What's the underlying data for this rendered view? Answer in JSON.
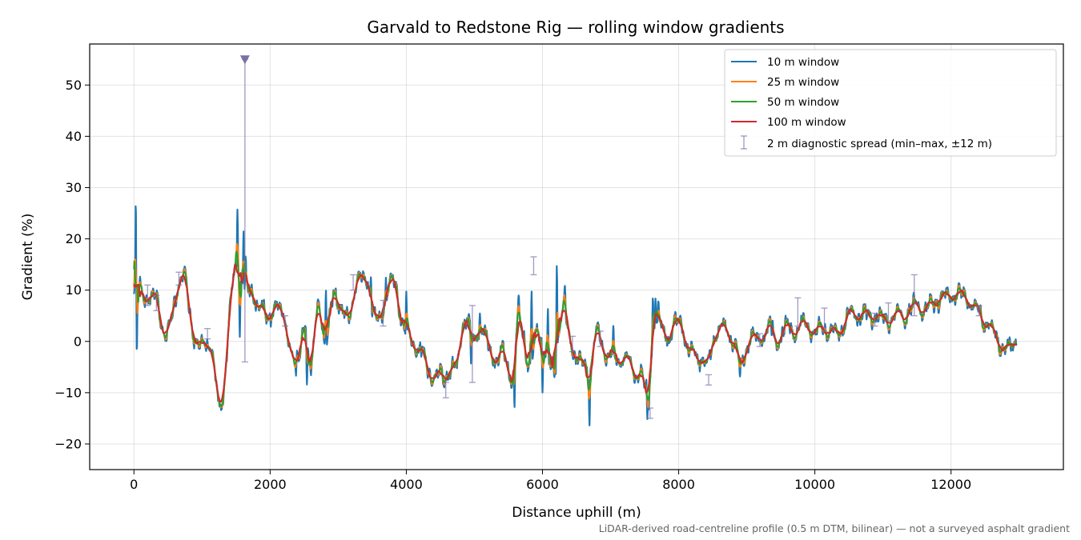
{
  "chart_data": {
    "type": "line",
    "title": "Garvald to Redstone Rig — rolling window gradients",
    "xlabel": "Distance uphill (m)",
    "ylabel": "Gradient (%)",
    "xlim": [
      -650,
      13650
    ],
    "ylim": [
      -25,
      58
    ],
    "xticks": [
      0,
      2000,
      4000,
      6000,
      8000,
      10000,
      12000
    ],
    "yticks": [
      -20,
      -10,
      0,
      10,
      20,
      30,
      40,
      50
    ],
    "grid": true,
    "legend_position": "top-right",
    "footnote": "LiDAR-derived road-centreline profile (0.5 m DTM, bilinear) — not a surveyed asphalt gradient",
    "profile_control_points": [
      [
        0,
        9
      ],
      [
        60,
        11
      ],
      [
        150,
        9
      ],
      [
        250,
        8
      ],
      [
        330,
        9.5
      ],
      [
        400,
        4
      ],
      [
        470,
        0
      ],
      [
        550,
        4
      ],
      [
        630,
        10
      ],
      [
        700,
        13
      ],
      [
        760,
        12
      ],
      [
        820,
        6
      ],
      [
        880,
        1
      ],
      [
        950,
        -1
      ],
      [
        1020,
        -1
      ],
      [
        1100,
        0
      ],
      [
        1150,
        -2
      ],
      [
        1200,
        -8
      ],
      [
        1250,
        -14
      ],
      [
        1300,
        -12
      ],
      [
        1360,
        -2
      ],
      [
        1420,
        8
      ],
      [
        1480,
        13
      ],
      [
        1550,
        14
      ],
      [
        1620,
        10
      ],
      [
        1700,
        9
      ],
      [
        1800,
        8.5
      ],
      [
        1880,
        7
      ],
      [
        1950,
        4
      ],
      [
        2000,
        5
      ],
      [
        2080,
        8
      ],
      [
        2150,
        5
      ],
      [
        2250,
        3
      ],
      [
        2300,
        -1
      ],
      [
        2360,
        -5
      ],
      [
        2420,
        -4
      ],
      [
        2480,
        3
      ],
      [
        2520,
        6
      ],
      [
        2560,
        -3
      ],
      [
        2600,
        -7
      ],
      [
        2660,
        2
      ],
      [
        2700,
        9
      ],
      [
        2760,
        4
      ],
      [
        2820,
        -3
      ],
      [
        2880,
        5
      ],
      [
        2940,
        11
      ],
      [
        3000,
        7
      ],
      [
        3080,
        4
      ],
      [
        3150,
        5
      ],
      [
        3250,
        10
      ],
      [
        3320,
        12
      ],
      [
        3420,
        13
      ],
      [
        3480,
        7
      ],
      [
        3550,
        4
      ],
      [
        3650,
        6
      ],
      [
        3750,
        11
      ],
      [
        3830,
        12
      ],
      [
        3880,
        9
      ],
      [
        3950,
        3
      ],
      [
        4050,
        1
      ],
      [
        4150,
        -1
      ],
      [
        4250,
        -3
      ],
      [
        4350,
        -6
      ],
      [
        4450,
        -7
      ],
      [
        4550,
        -7
      ],
      [
        4650,
        -6
      ],
      [
        4750,
        -5
      ],
      [
        4800,
        1
      ],
      [
        4850,
        5
      ],
      [
        4920,
        3
      ],
      [
        5000,
        0
      ],
      [
        5080,
        3
      ],
      [
        5150,
        1
      ],
      [
        5250,
        -2
      ],
      [
        5350,
        -4
      ],
      [
        5420,
        -2
      ],
      [
        5500,
        -5
      ],
      [
        5560,
        -8
      ],
      [
        5640,
        4
      ],
      [
        5720,
        2
      ],
      [
        5800,
        -5
      ],
      [
        5860,
        -3
      ],
      [
        5920,
        3
      ],
      [
        5980,
        1
      ],
      [
        6050,
        -3
      ],
      [
        6120,
        -6
      ],
      [
        6200,
        -4
      ],
      [
        6260,
        5
      ],
      [
        6320,
        6
      ],
      [
        6400,
        1
      ],
      [
        6480,
        -3
      ],
      [
        6560,
        -5
      ],
      [
        6620,
        -4
      ],
      [
        6700,
        -6
      ],
      [
        6760,
        0
      ],
      [
        6820,
        2
      ],
      [
        6880,
        -1
      ],
      [
        6950,
        -3
      ],
      [
        7050,
        -4
      ],
      [
        7150,
        -3
      ],
      [
        7250,
        -4
      ],
      [
        7350,
        -6
      ],
      [
        7450,
        -6
      ],
      [
        7520,
        -10
      ],
      [
        7580,
        -6
      ],
      [
        7640,
        4
      ],
      [
        7700,
        4
      ],
      [
        7780,
        2
      ],
      [
        7850,
        1
      ],
      [
        7950,
        3
      ],
      [
        8050,
        4
      ],
      [
        8100,
        0
      ],
      [
        8150,
        -2
      ],
      [
        8250,
        -2.5
      ],
      [
        8350,
        -3
      ],
      [
        8430,
        -6
      ],
      [
        8500,
        0
      ],
      [
        8560,
        2
      ],
      [
        8620,
        3
      ],
      [
        8700,
        2
      ],
      [
        8780,
        1
      ],
      [
        8850,
        -1
      ],
      [
        8930,
        -5
      ],
      [
        8990,
        -2
      ],
      [
        9050,
        1
      ],
      [
        9150,
        0
      ],
      [
        9250,
        1
      ],
      [
        9320,
        3
      ],
      [
        9420,
        0
      ],
      [
        9520,
        1
      ],
      [
        9600,
        3
      ],
      [
        9700,
        2
      ],
      [
        9800,
        3
      ],
      [
        9900,
        3
      ],
      [
        10000,
        2
      ],
      [
        10100,
        3
      ],
      [
        10200,
        2
      ],
      [
        10300,
        1
      ],
      [
        10400,
        3
      ],
      [
        10500,
        5
      ],
      [
        10600,
        5
      ],
      [
        10700,
        5.5
      ],
      [
        10800,
        5
      ],
      [
        10900,
        5
      ],
      [
        11000,
        4
      ],
      [
        11100,
        4
      ],
      [
        11200,
        5.5
      ],
      [
        11300,
        5
      ],
      [
        11400,
        6
      ],
      [
        11500,
        7
      ],
      [
        11600,
        6
      ],
      [
        11700,
        7
      ],
      [
        11800,
        8
      ],
      [
        11900,
        8.5
      ],
      [
        12000,
        9
      ],
      [
        12100,
        9
      ],
      [
        12200,
        8.5
      ],
      [
        12300,
        7
      ],
      [
        12400,
        6
      ],
      [
        12500,
        4
      ],
      [
        12600,
        2
      ],
      [
        12700,
        0
      ],
      [
        12800,
        -2
      ],
      [
        12900,
        -1.5
      ],
      [
        12960,
        1
      ]
    ],
    "spikes": [
      [
        30,
        41
      ],
      [
        40,
        -12
      ],
      [
        55,
        5
      ],
      [
        1520,
        32
      ],
      [
        1555,
        -5
      ],
      [
        1610,
        27
      ],
      [
        1640,
        20
      ],
      [
        2540,
        -14
      ],
      [
        2820,
        16
      ],
      [
        2380,
        -8
      ],
      [
        3480,
        15
      ],
      [
        3700,
        14
      ],
      [
        4000,
        13
      ],
      [
        4950,
        -8
      ],
      [
        5080,
        7
      ],
      [
        5590,
        -18
      ],
      [
        5650,
        11
      ],
      [
        5840,
        16
      ],
      [
        6000,
        -14
      ],
      [
        6080,
        11
      ],
      [
        6210,
        24
      ],
      [
        6330,
        13
      ],
      [
        6690,
        -21
      ],
      [
        7040,
        6
      ],
      [
        7540,
        -19
      ],
      [
        7560,
        -16
      ],
      [
        7620,
        13
      ],
      [
        7660,
        11
      ],
      [
        7700,
        9
      ],
      [
        8900,
        -9
      ],
      [
        9380,
        5
      ],
      [
        9520,
        3.8
      ]
    ],
    "series": [
      {
        "name": "10 m window",
        "color": "#1f77b4",
        "window_m": 10
      },
      {
        "name": "25 m window",
        "color": "#ff7f0e",
        "window_m": 25
      },
      {
        "name": "50 m window",
        "color": "#2ca02c",
        "window_m": 50
      },
      {
        "name": "100 m window",
        "color": "#d62728",
        "window_m": 100
      }
    ],
    "diagnostic": {
      "name": "2 m diagnostic spread (min–max, ±12 m)",
      "color": "#7b6fa6",
      "clipped_marker": {
        "x": 1630,
        "y": 55
      },
      "bars": [
        {
          "x": 1630,
          "min": -4,
          "max": 55
        },
        {
          "x": 200,
          "min": 7,
          "max": 11
        },
        {
          "x": 330,
          "min": 6,
          "max": 9
        },
        {
          "x": 660,
          "min": 11,
          "max": 13.5
        },
        {
          "x": 1080,
          "min": 0.5,
          "max": 2.5
        },
        {
          "x": 2220,
          "min": 3,
          "max": 5
        },
        {
          "x": 3220,
          "min": 10,
          "max": 13
        },
        {
          "x": 3660,
          "min": 3,
          "max": 8
        },
        {
          "x": 4580,
          "min": -11,
          "max": -8
        },
        {
          "x": 4970,
          "min": -8,
          "max": 7
        },
        {
          "x": 5870,
          "min": 13,
          "max": 16.5
        },
        {
          "x": 6440,
          "min": -2,
          "max": 1
        },
        {
          "x": 6850,
          "min": -1,
          "max": 2
        },
        {
          "x": 7580,
          "min": -15,
          "max": -13
        },
        {
          "x": 8440,
          "min": -8.5,
          "max": -6.5
        },
        {
          "x": 9190,
          "min": -1,
          "max": 1.5
        },
        {
          "x": 9750,
          "min": 3,
          "max": 8.5
        },
        {
          "x": 10140,
          "min": 2,
          "max": 6.5
        },
        {
          "x": 10880,
          "min": 3,
          "max": 5.5
        },
        {
          "x": 11080,
          "min": 4,
          "max": 7.5
        },
        {
          "x": 11460,
          "min": 5,
          "max": 13
        },
        {
          "x": 12410,
          "min": 5,
          "max": 7
        }
      ]
    }
  }
}
